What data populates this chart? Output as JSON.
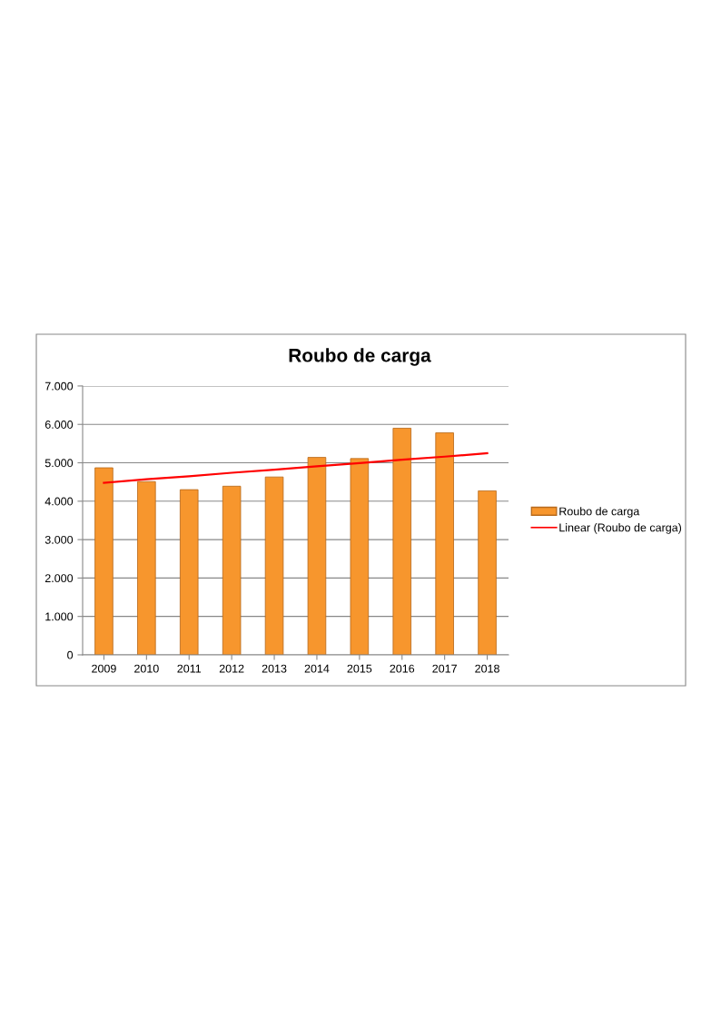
{
  "chart_data": {
    "type": "bar",
    "title": "Roubo de carga",
    "categories": [
      "2009",
      "2010",
      "2011",
      "2012",
      "2013",
      "2014",
      "2015",
      "2016",
      "2017",
      "2018"
    ],
    "series": [
      {
        "name": "Roubo de carga",
        "color": "#f7962d",
        "values": [
          4870,
          4510,
          4300,
          4390,
          4630,
          5140,
          5110,
          5900,
          5780,
          4270
        ]
      },
      {
        "name": "Linear (Roubo de carga)",
        "type": "line",
        "color": "#ff0000",
        "values": [
          4480,
          4570,
          4650,
          4740,
          4820,
          4910,
          4990,
          5080,
          5160,
          5250
        ]
      }
    ],
    "ylim": [
      0,
      7000
    ],
    "yticks": [
      0,
      {
        "value": 1000,
        "label": "1.000"
      },
      {
        "value": 2000,
        "label": "2.000"
      },
      {
        "value": 3000,
        "label": "3.000"
      },
      {
        "value": 4000,
        "label": "4.000"
      },
      {
        "value": 5000,
        "label": "5.000"
      },
      {
        "value": 6000,
        "label": "6.000"
      },
      {
        "value": 7000,
        "label": "7.000"
      }
    ],
    "grid": "y",
    "legend": "right"
  }
}
